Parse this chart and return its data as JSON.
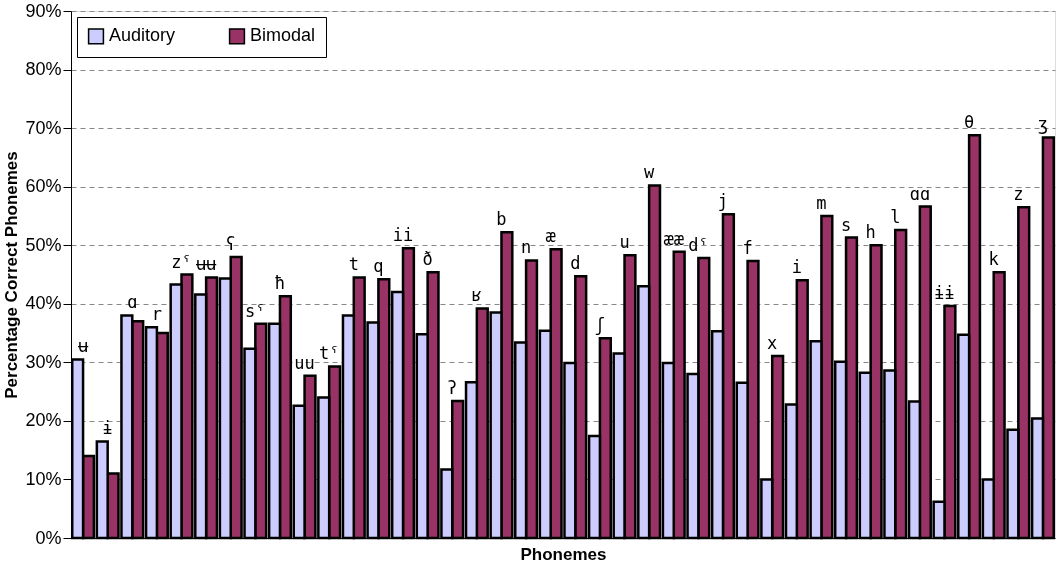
{
  "chart_data": {
    "type": "bar",
    "xlabel": "Phonemes",
    "ylabel": "Percentage Correct Phonemes",
    "categories": [
      "ʉ",
      "ɨ",
      "ɑ",
      "r",
      "zˤ",
      "ʉʉ",
      "ʕ",
      "sˤ",
      "ħ",
      "uu",
      "tˤ",
      "t",
      "q",
      "ii",
      "ð",
      "ʔ",
      "ʁ",
      "b",
      "n",
      "æ",
      "d",
      "ʃ",
      "u",
      "w",
      "ææ",
      "dˤ",
      "j",
      "f",
      "x",
      "i",
      "m",
      "s",
      "h",
      "l",
      "ɑɑ",
      "ɨɨ",
      "θ",
      "k",
      "z",
      "ʒ"
    ],
    "series": [
      {
        "name": "Auditory",
        "color": "#ccccff",
        "values": [
          30.5,
          16.5,
          38,
          36,
          43.3,
          41.6,
          44.3,
          32.3,
          36.6,
          22.6,
          24,
          38,
          36.8,
          42,
          34.8,
          11.7,
          26.6,
          38.5,
          33.4,
          35.4,
          29.9,
          17.4,
          31.5,
          43,
          29.9,
          28,
          35.3,
          26.5,
          10,
          22.8,
          33.6,
          30.1,
          28.2,
          28.6,
          23.3,
          6.2,
          34.7,
          10,
          18.5,
          20.4
        ]
      },
      {
        "name": "Bimodal",
        "color": "#993366",
        "values": [
          14,
          11,
          37,
          35,
          45,
          44.5,
          48,
          36.6,
          41.3,
          27.7,
          29.3,
          44.5,
          44.2,
          49.5,
          45.4,
          23.4,
          39.2,
          52.2,
          47.4,
          49.3,
          44.7,
          34.1,
          48.3,
          60.2,
          48.9,
          47.8,
          55.3,
          47.3,
          31.1,
          44,
          55,
          51.3,
          50,
          52.6,
          56.6,
          39.6,
          68.8,
          45.4,
          56.5,
          68.4
        ]
      }
    ],
    "ylim": [
      0,
      90
    ],
    "yticks": [
      {
        "value": 0,
        "label": "0%"
      },
      {
        "value": 10,
        "label": "10%"
      },
      {
        "value": 20,
        "label": "20%"
      },
      {
        "value": 30,
        "label": "30%"
      },
      {
        "value": 40,
        "label": "40%"
      },
      {
        "value": 50,
        "label": "50%"
      },
      {
        "value": 60,
        "label": "60%"
      },
      {
        "value": 70,
        "label": "70%"
      },
      {
        "value": 80,
        "label": "80%"
      },
      {
        "value": 90,
        "label": "90%"
      }
    ],
    "grid": "y",
    "legend": "top left"
  }
}
